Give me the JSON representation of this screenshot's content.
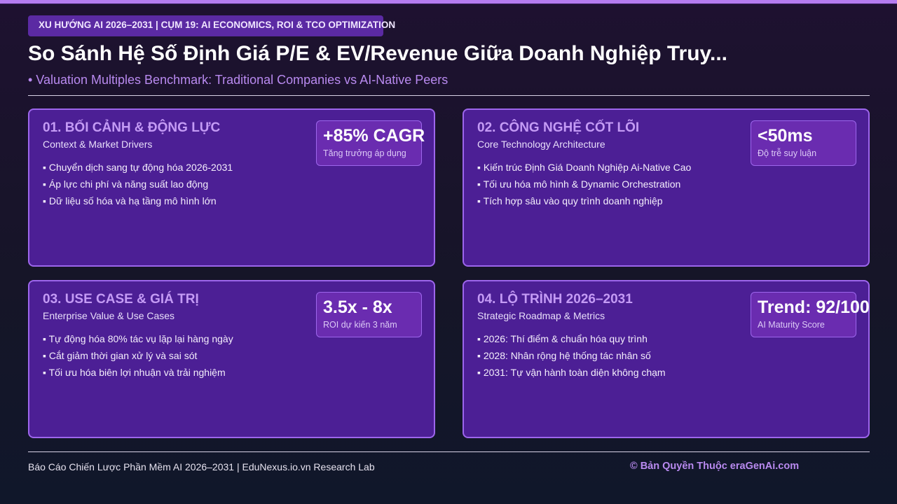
{
  "header": {
    "tag": "XU HƯỚNG AI 2026–2031 | CỤM 19: AI ECONOMICS, ROI & TCO OPTIMIZATION",
    "title": "So Sánh Hệ Số Định Giá P/E & EV/Revenue Giữa Doanh Nghiệp Truy...",
    "subtitle": "• Valuation Multiples Benchmark: Traditional Companies vs AI-Native Peers"
  },
  "cards": [
    {
      "title": "01. BỐI CẢNH & ĐỘNG LỰC",
      "subtitle": "Context & Market Drivers",
      "items": [
        "▪ Chuyển dịch sang tự động hóa 2026-2031",
        "▪ Áp lực chi phí và năng suất lao động",
        "▪ Dữ liệu số hóa và hạ tầng mô hình lớn"
      ],
      "metric": {
        "value": "+85% CAGR",
        "label": "Tăng trưởng áp dụng"
      }
    },
    {
      "title": "02. CÔNG NGHỆ CỐT LÕI",
      "subtitle": "Core Technology Architecture",
      "items": [
        "▪ Kiến trúc Định Giá Doanh Nghiệp Ai-Native Cao",
        "▪ Tối ưu hóa mô hình & Dynamic Orchestration",
        "▪ Tích hợp sâu vào quy trình doanh nghiệp"
      ],
      "metric": {
        "value": "<50ms",
        "label": "Độ trễ suy luận"
      }
    },
    {
      "title": "03. USE CASE & GIÁ TRỊ",
      "subtitle": "Enterprise Value & Use Cases",
      "items": [
        "▪ Tự động hóa 80% tác vụ lặp lại hàng ngày",
        "▪ Cắt giảm thời gian xử lý và sai sót",
        "▪ Tối ưu hóa biên lợi nhuận và trải nghiệm"
      ],
      "metric": {
        "value": "3.5x - 8x",
        "label": "ROI dự kiến 3 năm"
      }
    },
    {
      "title": "04. LỘ TRÌNH 2026–2031",
      "subtitle": "Strategic Roadmap & Metrics",
      "items": [
        "▪ 2026: Thí điểm & chuẩn hóa quy trình",
        "▪ 2028: Nhân rộng hệ thống tác nhân số",
        "▪ 2031: Tự vận hành toàn diện không chạm"
      ],
      "metric": {
        "value": "Trend: 92/100",
        "label": "AI Maturity Score"
      }
    }
  ],
  "footer": {
    "left": "Báo Cáo Chiến Lược Phần Mềm AI 2026–2031 | EduNexus.io.vn Research Lab",
    "right": "© Bản Quyền Thuộc eraGenAi.com"
  },
  "colors": {
    "accent": "#b98af0",
    "card_bg": "#4c1f95",
    "card_border": "#9d66ec"
  }
}
